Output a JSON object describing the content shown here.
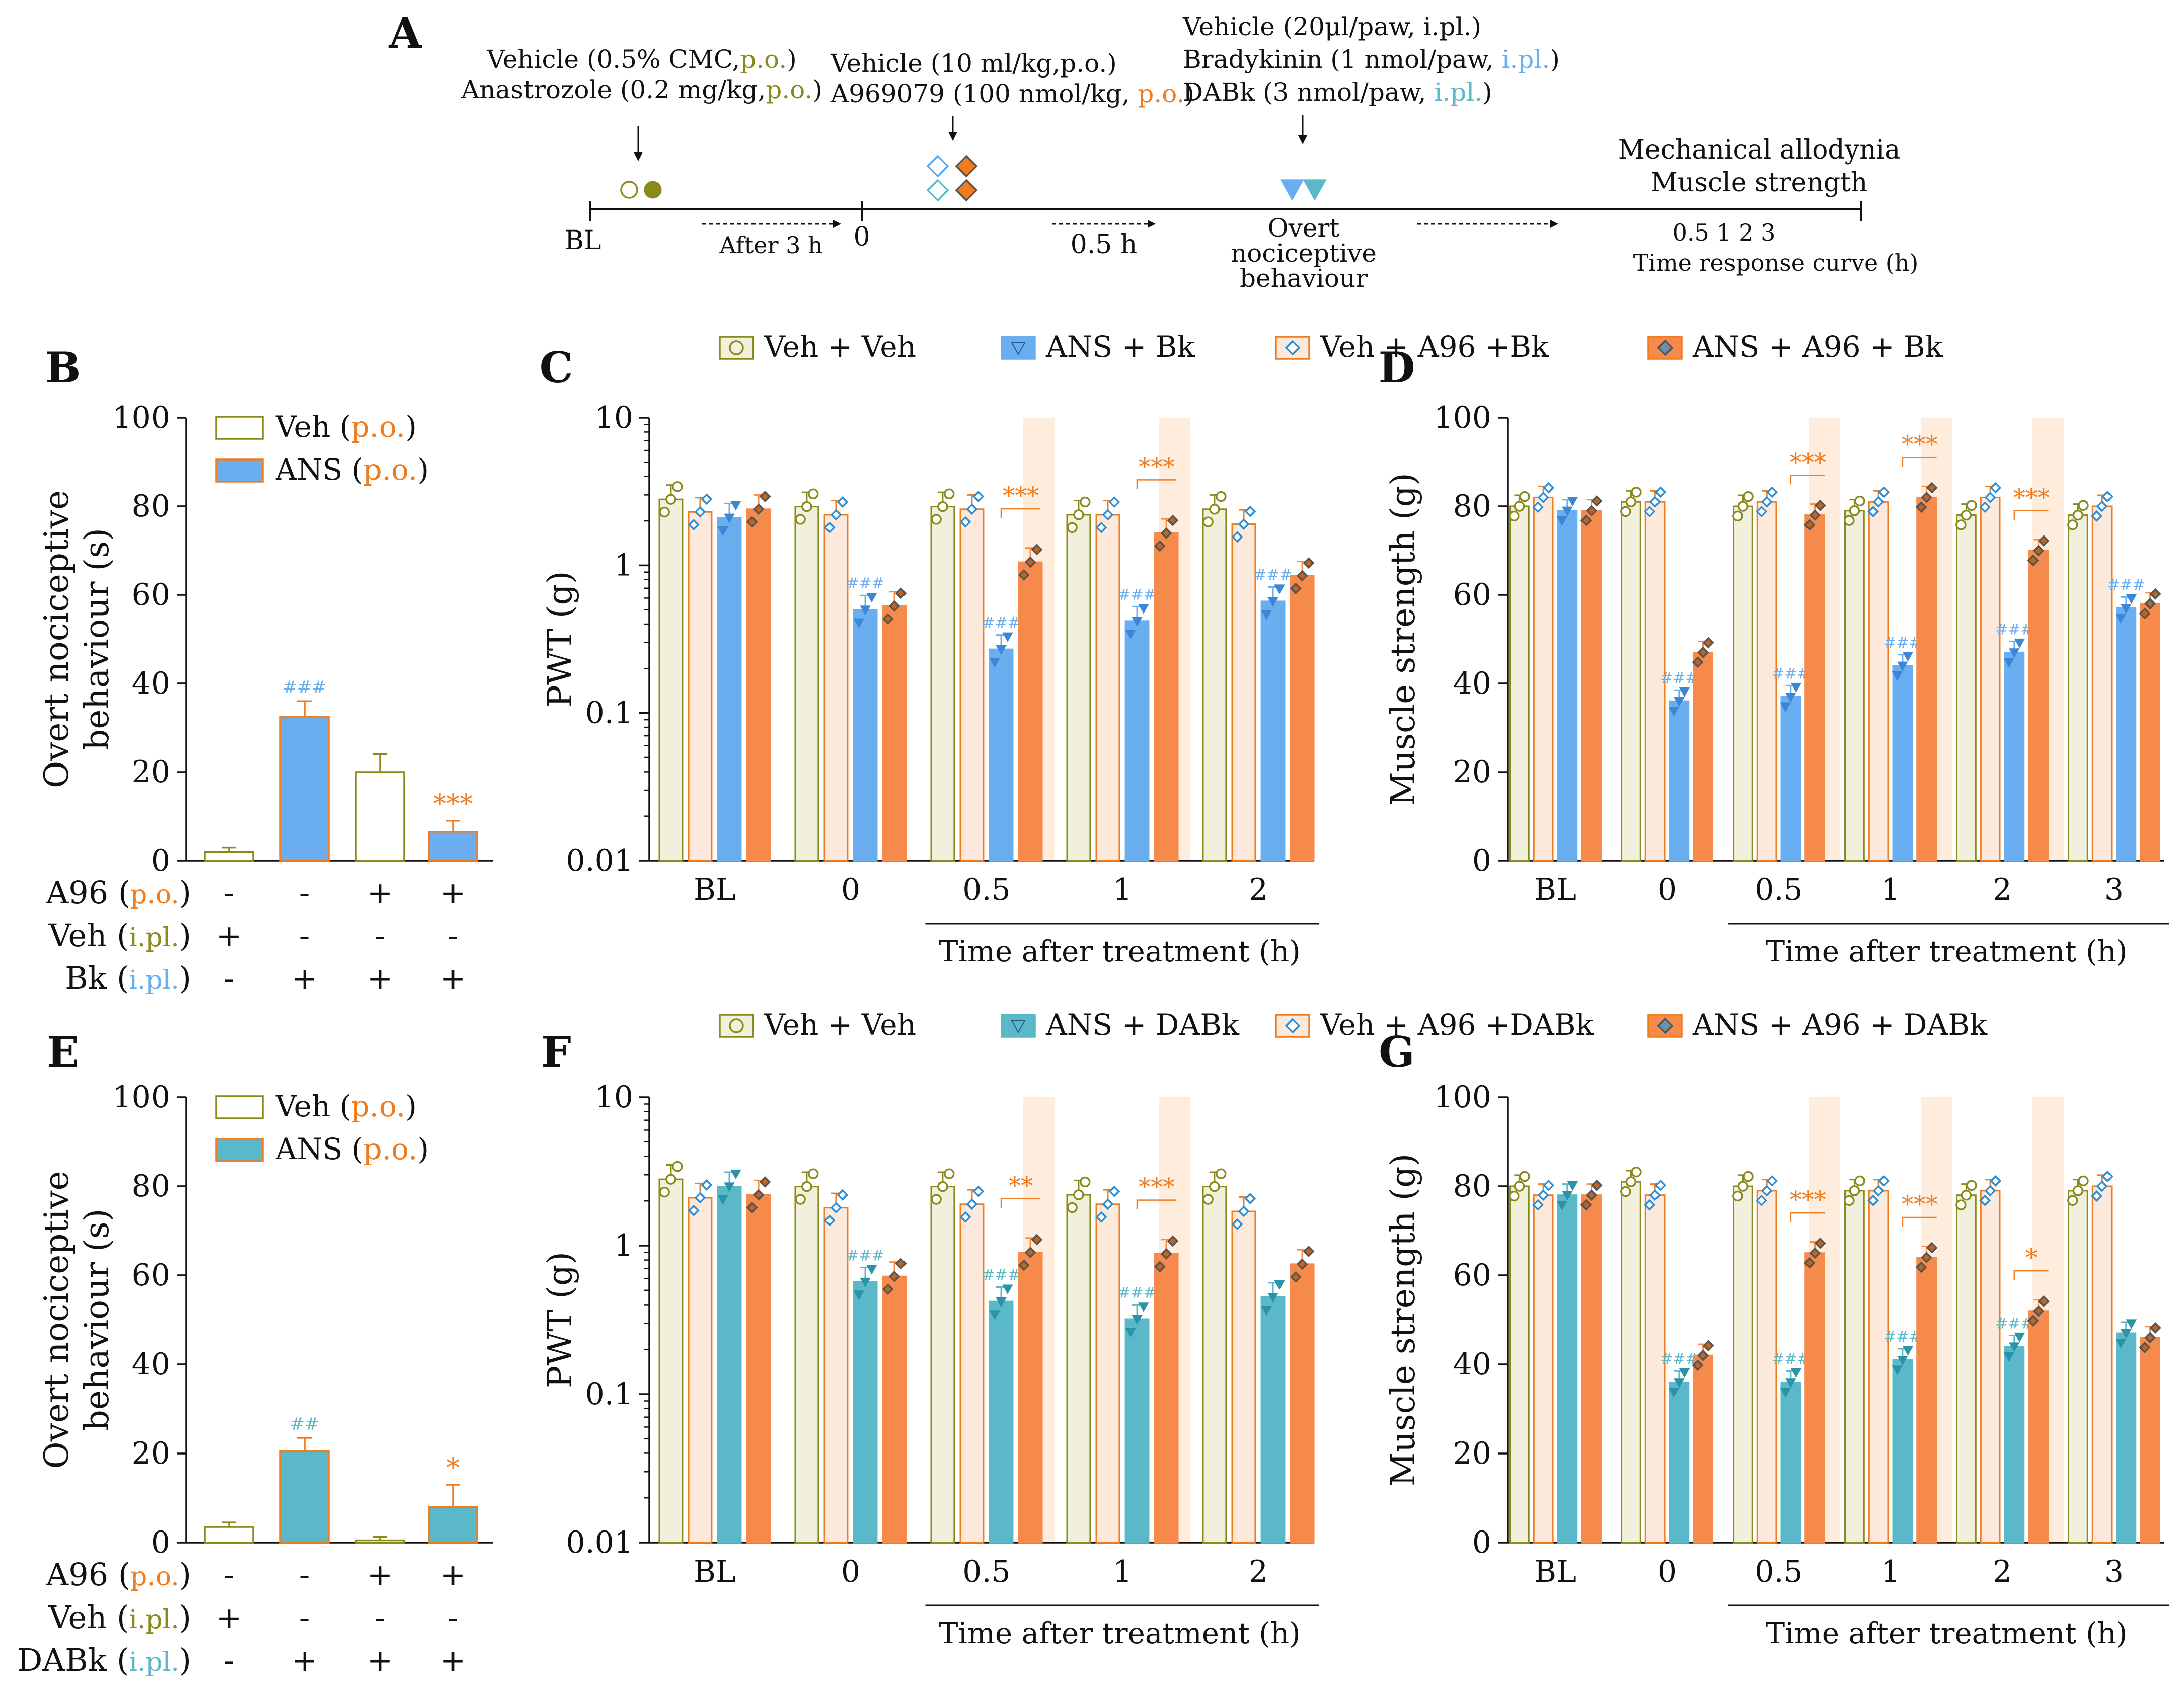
{
  "colors": {
    "veh": "#8a8a1a",
    "veh_fill": "#f0f0dc",
    "ans_bk": "#6aaef0",
    "ans_dabk": "#5bb8c8",
    "a96": "#f07c20",
    "a96_fill": "#fde9db",
    "ans_a96": "#f58a4a",
    "dark": "#111111",
    "shade": "#fde4cf"
  },
  "panel_a": {
    "label": "A",
    "oral_lines": [
      {
        "parts": [
          {
            "text": "Vehicle (0.5% CMC,",
            "c": "dark"
          },
          {
            "text": "p.o.",
            "c": "veh"
          },
          {
            "text": ")",
            "c": "dark"
          }
        ]
      },
      {
        "parts": [
          {
            "text": "Anastrozole (0.2 mg/kg,",
            "c": "dark"
          },
          {
            "text": "p.o.",
            "c": "veh"
          },
          {
            "text": ")",
            "c": "dark"
          }
        ]
      }
    ],
    "a96_lines": [
      {
        "parts": [
          {
            "text": "Vehicle (10 ml/kg,p.o.)",
            "c": "dark"
          }
        ]
      },
      {
        "parts": [
          {
            "text": "A969079 (100 nmol/kg, ",
            "c": "dark"
          },
          {
            "text": "p.o.",
            "c": "a96"
          },
          {
            "text": ")",
            "c": "dark"
          }
        ]
      }
    ],
    "ipl_lines": [
      {
        "parts": [
          {
            "text": "Vehicle (20μl/paw, i.pl.)",
            "c": "dark"
          }
        ]
      },
      {
        "parts": [
          {
            "text": "Bradykinin  (1 nmol/paw, ",
            "c": "dark"
          },
          {
            "text": "i.pl.",
            "c": "ans_bk"
          },
          {
            "text": ")",
            "c": "dark"
          }
        ]
      },
      {
        "parts": [
          {
            "text": "DABk (3 nmol/paw, ",
            "c": "dark"
          },
          {
            "text": "i.pl.",
            "c": "ans_dabk"
          },
          {
            "text": ")",
            "c": "dark"
          }
        ]
      }
    ],
    "bl": "BL",
    "after": "After 3 h",
    "zero": "0",
    "half_h": "0.5 h",
    "overt": [
      "Overt",
      "nociceptive",
      "behaviour"
    ],
    "mech": [
      "Mechanical allodynia",
      "Muscle strength"
    ],
    "times": "0.5   1   2   3",
    "curve": "Time response curve (h)"
  },
  "legend_top": {
    "items": [
      {
        "label": "Veh + Veh",
        "marker": "circle",
        "color": "veh",
        "fill": "veh_fill"
      },
      {
        "label": "ANS + Bk",
        "marker": "triangle",
        "color": "ans_bk",
        "fill": "ans_bk"
      },
      {
        "label": "Veh +  A96 +Bk",
        "marker": "diamond-open",
        "color": "a96",
        "fill": "a96_fill"
      },
      {
        "label": "ANS + A96 + Bk",
        "marker": "diamond-filled",
        "color": "a96",
        "fill": "ans_a96"
      }
    ]
  },
  "legend_bottom": {
    "items": [
      {
        "label": "Veh + Veh",
        "marker": "circle",
        "color": "veh",
        "fill": "veh_fill"
      },
      {
        "label": "ANS + DABk",
        "marker": "triangle",
        "color": "ans_dabk",
        "fill": "ans_dabk"
      },
      {
        "label": "Veh +  A96 +DABk",
        "marker": "diamond-open",
        "color": "a96",
        "fill": "a96_fill"
      },
      {
        "label": "ANS + A96 + DABk",
        "marker": "diamond-filled",
        "color": "a96",
        "fill": "ans_a96"
      }
    ]
  },
  "chart_data": [
    {
      "panel": "B",
      "type": "bar",
      "ylabel_lines": [
        "Overt nociceptive",
        "behaviour (s)"
      ],
      "ylim": [
        0,
        100
      ],
      "yticks": [
        0,
        20,
        40,
        60,
        80,
        100
      ],
      "legend": [
        {
          "label": "Veh",
          "suffix": "p.o.",
          "filled": false,
          "color": "veh"
        },
        {
          "label": "ANS",
          "suffix": "p.o.",
          "filled": true,
          "color": "ans_bk"
        }
      ],
      "bars": [
        {
          "value": 2,
          "sem": 1,
          "filled": false,
          "sig": ""
        },
        {
          "value": 32.5,
          "sem": 3.5,
          "filled": true,
          "sig": "###",
          "sig_color": "ans_bk"
        },
        {
          "value": 20,
          "sem": 4,
          "filled": false,
          "sig": ""
        },
        {
          "value": 6.5,
          "sem": 2.5,
          "filled": true,
          "sig": "***",
          "sig_color": "a96"
        }
      ],
      "table": [
        {
          "name": "A96",
          "route": "p.o.",
          "route_color": "a96",
          "signs": [
            "-",
            "-",
            "+",
            "+"
          ]
        },
        {
          "name": "Veh",
          "route": "i.pl.",
          "route_color": "veh",
          "signs": [
            "+",
            "-",
            "-",
            "-"
          ]
        },
        {
          "name": "Bk",
          "route": "i.pl.",
          "route_color": "ans_bk",
          "signs": [
            "-",
            "+",
            "+",
            "+"
          ]
        }
      ]
    },
    {
      "panel": "E",
      "type": "bar",
      "ylabel_lines": [
        "Overt nociceptive",
        "behaviour (s)"
      ],
      "ylim": [
        0,
        100
      ],
      "yticks": [
        0,
        20,
        40,
        60,
        80,
        100
      ],
      "legend": [
        {
          "label": "Veh",
          "suffix": "p.o.",
          "filled": false,
          "color": "veh"
        },
        {
          "label": "ANS",
          "suffix": "p.o.",
          "filled": true,
          "color": "ans_dabk"
        }
      ],
      "bars": [
        {
          "value": 3.5,
          "sem": 1,
          "filled": false,
          "sig": ""
        },
        {
          "value": 20.5,
          "sem": 3,
          "filled": true,
          "sig": "##",
          "sig_color": "ans_dabk"
        },
        {
          "value": 0.5,
          "sem": 0.8,
          "filled": false,
          "sig": ""
        },
        {
          "value": 8,
          "sem": 5,
          "filled": true,
          "sig": "*",
          "sig_color": "a96"
        }
      ],
      "table": [
        {
          "name": "A96",
          "route": "p.o.",
          "route_color": "a96",
          "signs": [
            "-",
            "-",
            "+",
            "+"
          ]
        },
        {
          "name": "Veh",
          "route": "i.pl.",
          "route_color": "veh",
          "signs": [
            "+",
            "-",
            "-",
            "-"
          ]
        },
        {
          "name": "DABk",
          "route": "i.pl.",
          "route_color": "ans_dabk",
          "signs": [
            "-",
            "+",
            "+",
            "+"
          ]
        }
      ]
    },
    {
      "panel": "C",
      "type": "bar",
      "scale": "log",
      "ylabel": "PWT (g)",
      "ylim": [
        0.01,
        10
      ],
      "ytick_labels": [
        "0.01",
        "0.1",
        "1",
        "10"
      ],
      "categories": [
        "BL",
        "0",
        "0.5",
        "1",
        "2"
      ],
      "xlabel": "Time after treatment (h)",
      "shade_groups": [
        2,
        3
      ],
      "values": [
        [
          2.8,
          2.3,
          2.1,
          2.4
        ],
        [
          2.5,
          2.2,
          0.5,
          0.53
        ],
        [
          2.5,
          2.4,
          0.27,
          1.05
        ],
        [
          2.2,
          2.2,
          0.42,
          1.65
        ],
        [
          2.4,
          1.9,
          0.57,
          0.85
        ]
      ],
      "hash": [
        null,
        "###",
        "###",
        "###",
        "###"
      ],
      "stars": [
        null,
        null,
        "***",
        "***",
        null
      ]
    },
    {
      "panel": "F",
      "type": "bar",
      "scale": "log",
      "ylabel": "PWT (g)",
      "ylim": [
        0.01,
        10
      ],
      "ytick_labels": [
        "0.01",
        "0.1",
        "1",
        "10"
      ],
      "categories": [
        "BL",
        "0",
        "0.5",
        "1",
        "2"
      ],
      "xlabel": "Time after treatment (h)",
      "shade_groups": [
        2,
        3
      ],
      "values": [
        [
          2.8,
          2.1,
          2.5,
          2.2
        ],
        [
          2.5,
          1.8,
          0.57,
          0.62
        ],
        [
          2.5,
          1.9,
          0.42,
          0.9
        ],
        [
          2.2,
          1.9,
          0.32,
          0.88
        ],
        [
          2.5,
          1.7,
          0.45,
          0.75
        ]
      ],
      "hash": [
        null,
        "###",
        "###",
        "###",
        null
      ],
      "stars": [
        null,
        null,
        "**",
        "***",
        null
      ]
    },
    {
      "panel": "D",
      "type": "bar",
      "ylabel": "Muscle strength (g)",
      "ylim": [
        0,
        100
      ],
      "yticks": [
        0,
        20,
        40,
        60,
        80,
        100
      ],
      "categories": [
        "BL",
        "0",
        "0.5",
        "1",
        "2",
        "3"
      ],
      "xlabel": "Time after treatment (h)",
      "shade_groups": [
        2,
        3,
        4
      ],
      "values": [
        [
          80,
          82,
          79,
          79
        ],
        [
          81,
          81,
          36,
          47
        ],
        [
          80,
          81,
          37,
          78
        ],
        [
          79,
          81,
          44,
          82
        ],
        [
          78,
          82,
          47,
          70
        ],
        [
          78,
          80,
          57,
          58
        ]
      ],
      "hash": [
        null,
        "###",
        "###",
        "###",
        "###",
        "###"
      ],
      "stars": [
        null,
        null,
        "***",
        "***",
        "***",
        null
      ]
    },
    {
      "panel": "G",
      "type": "bar",
      "ylabel": "Muscle strength (g)",
      "ylim": [
        0,
        100
      ],
      "yticks": [
        0,
        20,
        40,
        60,
        80,
        100
      ],
      "categories": [
        "BL",
        "0",
        "0.5",
        "1",
        "2",
        "3"
      ],
      "xlabel": "Time after treatment (h)",
      "shade_groups": [
        2,
        3,
        4
      ],
      "values": [
        [
          80,
          78,
          78,
          78
        ],
        [
          81,
          78,
          36,
          42
        ],
        [
          80,
          79,
          36,
          65
        ],
        [
          79,
          79,
          41,
          64
        ],
        [
          78,
          79,
          44,
          52
        ],
        [
          79,
          80,
          47,
          46
        ]
      ],
      "hash": [
        null,
        "###",
        "###",
        "###",
        "###",
        null
      ],
      "stars": [
        null,
        null,
        "***",
        "***",
        "*",
        null
      ]
    }
  ]
}
